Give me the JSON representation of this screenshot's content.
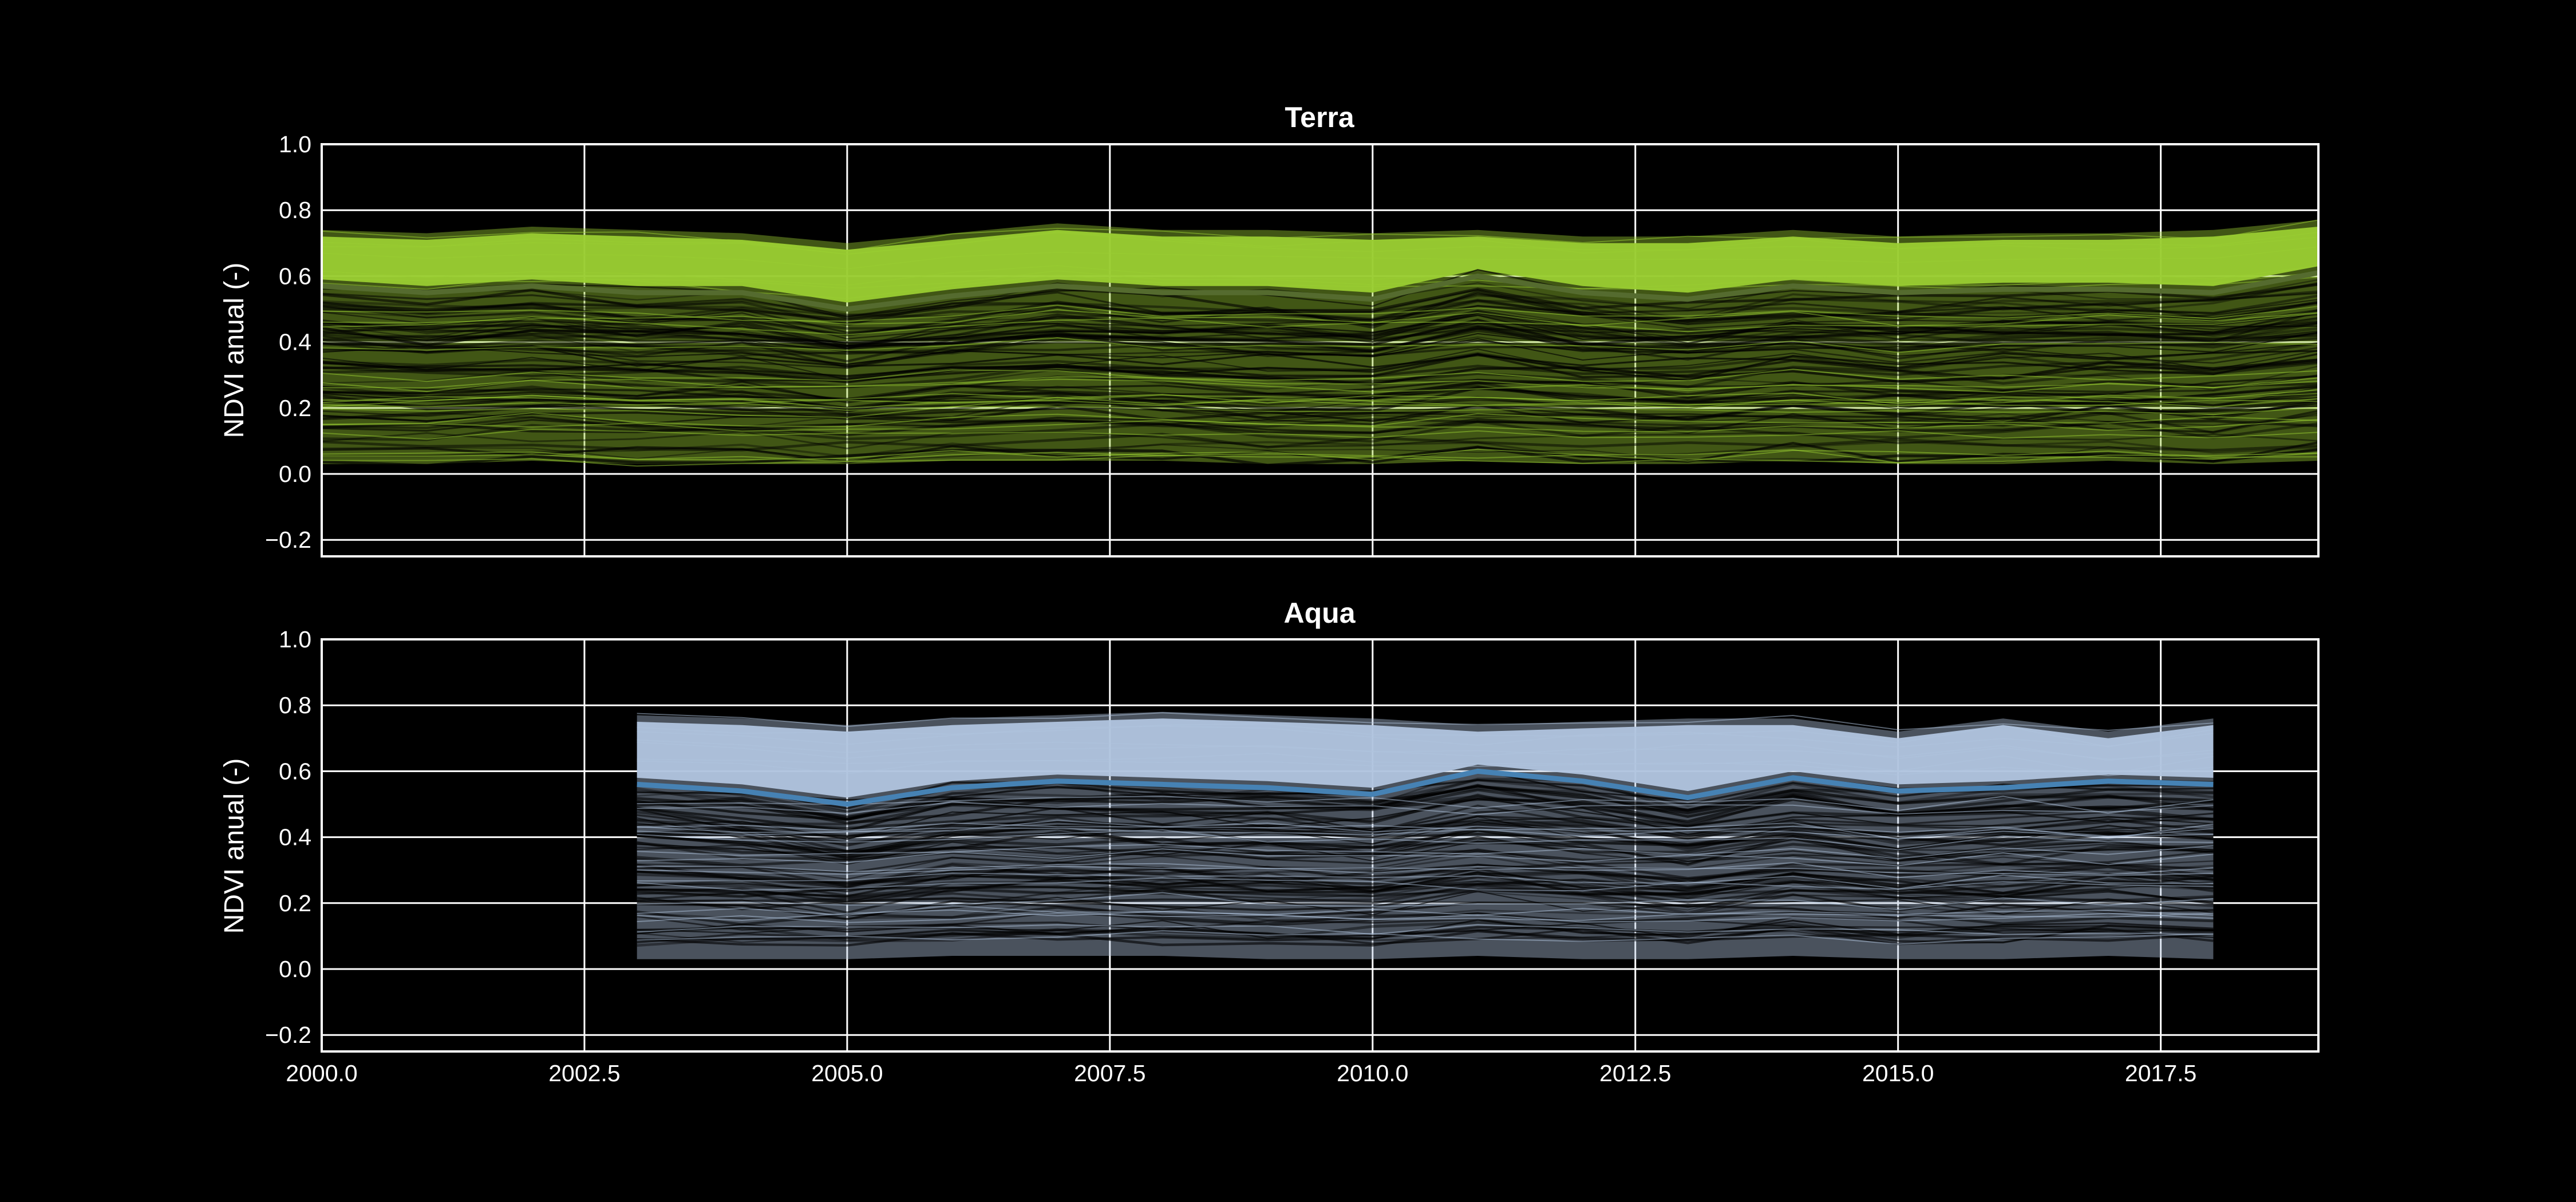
{
  "colors": {
    "background": "#000000",
    "terra_fill": "#9acd32",
    "terra_mean": "#556b2f",
    "aqua_fill": "#b0c4de",
    "aqua_mean": "#4682b4",
    "grid": "#ffffff"
  },
  "chart_data": [
    {
      "type": "line",
      "title": "Terra",
      "ylabel": "NDVI anual (-)",
      "xlabel": "",
      "xlim": [
        2000,
        2019
      ],
      "ylim": [
        -0.25,
        1.0
      ],
      "yticks": [
        "−0.2",
        "0.0",
        "0.2",
        "0.4",
        "0.6",
        "0.8",
        "1.0"
      ],
      "ytick_values": [
        -0.2,
        0.0,
        0.2,
        0.4,
        0.6,
        0.8,
        1.0
      ],
      "xticks": [
        2000,
        2002.5,
        2005,
        2007.5,
        2010,
        2012.5,
        2015,
        2017.5
      ],
      "grid": true,
      "x": [
        2000,
        2001,
        2002,
        2003,
        2004,
        2005,
        2006,
        2007,
        2008,
        2009,
        2010,
        2011,
        2012,
        2013,
        2014,
        2015,
        2016,
        2017,
        2018,
        2019
      ],
      "mean": [
        0.57,
        0.55,
        0.57,
        0.55,
        0.55,
        0.5,
        0.54,
        0.57,
        0.55,
        0.55,
        0.53,
        0.6,
        0.55,
        0.53,
        0.57,
        0.55,
        0.56,
        0.56,
        0.55,
        0.61
      ],
      "upper": [
        0.74,
        0.73,
        0.75,
        0.74,
        0.73,
        0.7,
        0.73,
        0.76,
        0.74,
        0.74,
        0.73,
        0.74,
        0.72,
        0.72,
        0.74,
        0.72,
        0.73,
        0.73,
        0.74,
        0.77
      ],
      "lower": [
        0.03,
        0.03,
        0.04,
        0.03,
        0.03,
        0.03,
        0.04,
        0.04,
        0.04,
        0.03,
        0.03,
        0.04,
        0.03,
        0.03,
        0.04,
        0.03,
        0.03,
        0.04,
        0.03,
        0.04
      ]
    },
    {
      "type": "line",
      "title": "Aqua",
      "ylabel": "NDVI anual (-)",
      "xlabel": "",
      "xlim": [
        2000,
        2019
      ],
      "ylim": [
        -0.25,
        1.0
      ],
      "yticks": [
        "−0.2",
        "0.0",
        "0.2",
        "0.4",
        "0.6",
        "0.8",
        "1.0"
      ],
      "ytick_values": [
        -0.2,
        0.0,
        0.2,
        0.4,
        0.6,
        0.8,
        1.0
      ],
      "xticks": [
        2000,
        2002.5,
        2005,
        2007.5,
        2010,
        2012.5,
        2015,
        2017.5
      ],
      "xtick_labels": [
        "2000.0",
        "2002.5",
        "2005.0",
        "2007.5",
        "2010.0",
        "2012.5",
        "2015.0",
        "2017.5"
      ],
      "grid": true,
      "x": [
        2003,
        2004,
        2005,
        2006,
        2007,
        2008,
        2009,
        2010,
        2011,
        2012,
        2013,
        2014,
        2015,
        2016,
        2017,
        2018
      ],
      "mean": [
        0.56,
        0.54,
        0.5,
        0.55,
        0.57,
        0.56,
        0.55,
        0.53,
        0.6,
        0.57,
        0.52,
        0.58,
        0.54,
        0.55,
        0.57,
        0.56
      ],
      "upper": [
        0.77,
        0.76,
        0.74,
        0.76,
        0.77,
        0.78,
        0.77,
        0.76,
        0.74,
        0.75,
        0.76,
        0.76,
        0.72,
        0.76,
        0.72,
        0.76
      ],
      "lower": [
        0.03,
        0.03,
        0.03,
        0.04,
        0.04,
        0.04,
        0.03,
        0.03,
        0.04,
        0.03,
        0.03,
        0.04,
        0.03,
        0.03,
        0.04,
        0.03
      ]
    }
  ]
}
